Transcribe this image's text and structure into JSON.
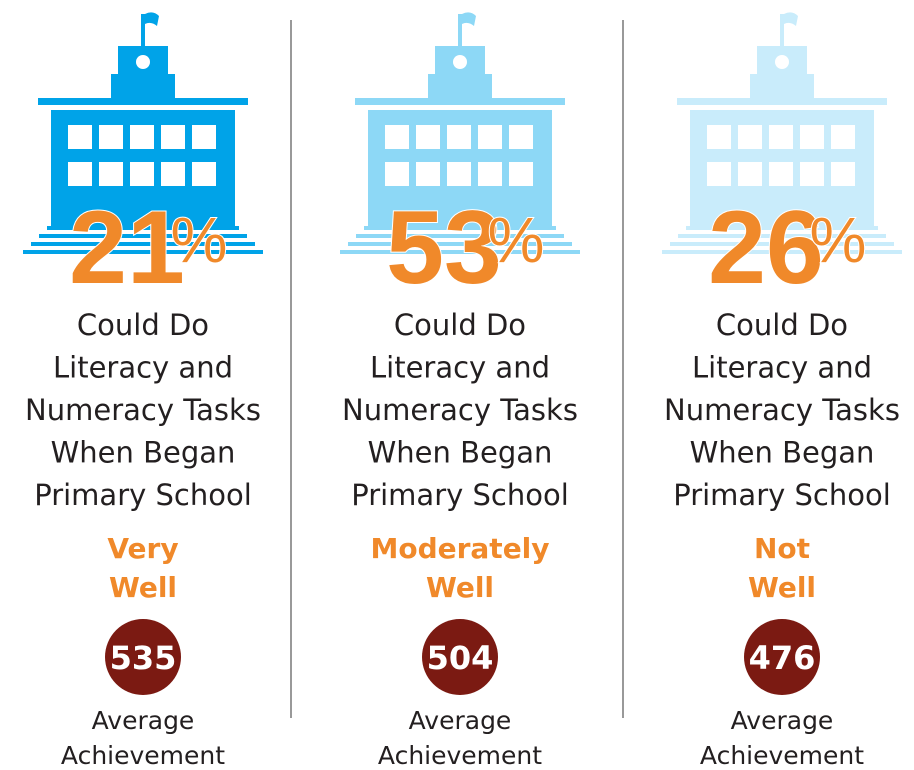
{
  "columns": [
    {
      "percent": 21,
      "unit": "%",
      "icon_color": "#00a3e8",
      "description": [
        "Could Do",
        "Literacy and",
        "Numeracy Tasks",
        "When Began",
        "Primary School"
      ],
      "level": [
        "Very",
        "Well"
      ],
      "score": 535,
      "score_label": [
        "Average",
        "Achievement"
      ]
    },
    {
      "percent": 53,
      "unit": "%",
      "icon_color": "#8dd8f6",
      "description": [
        "Could Do",
        "Literacy and",
        "Numeracy Tasks",
        "When Began",
        "Primary School"
      ],
      "level": [
        "Moderately",
        "Well"
      ],
      "score": 504,
      "score_label": [
        "Average",
        "Achievement"
      ]
    },
    {
      "percent": 26,
      "unit": "%",
      "icon_color": "#c9ecfb",
      "description": [
        "Could Do",
        "Literacy and",
        "Numeracy Tasks",
        "When Began",
        "Primary School"
      ],
      "level": [
        "Not",
        "Well"
      ],
      "score": 476,
      "score_label": [
        "Average",
        "Achievement"
      ]
    }
  ]
}
